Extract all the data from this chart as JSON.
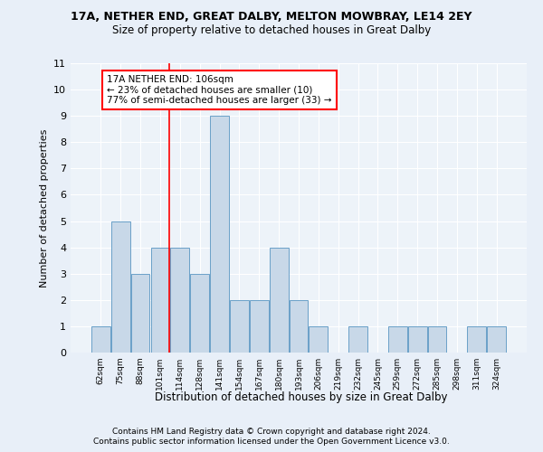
{
  "title1": "17A, NETHER END, GREAT DALBY, MELTON MOWBRAY, LE14 2EY",
  "title2": "Size of property relative to detached houses in Great Dalby",
  "xlabel": "Distribution of detached houses by size in Great Dalby",
  "ylabel": "Number of detached properties",
  "categories": [
    "62sqm",
    "75sqm",
    "88sqm",
    "101sqm",
    "114sqm",
    "128sqm",
    "141sqm",
    "154sqm",
    "167sqm",
    "180sqm",
    "193sqm",
    "206sqm",
    "219sqm",
    "232sqm",
    "245sqm",
    "259sqm",
    "272sqm",
    "285sqm",
    "298sqm",
    "311sqm",
    "324sqm"
  ],
  "values": [
    1,
    5,
    3,
    4,
    4,
    3,
    9,
    2,
    2,
    4,
    2,
    1,
    0,
    1,
    0,
    1,
    1,
    1,
    0,
    1,
    1
  ],
  "bar_color": "#c8d8e8",
  "bar_edge_color": "#6aa0c8",
  "red_line_x": 3.45,
  "annotation_title": "17A NETHER END: 106sqm",
  "annotation_line1": "← 23% of detached houses are smaller (10)",
  "annotation_line2": "77% of semi-detached houses are larger (33) →",
  "ylim": [
    0,
    11
  ],
  "yticks": [
    0,
    1,
    2,
    3,
    4,
    5,
    6,
    7,
    8,
    9,
    10,
    11
  ],
  "footer1": "Contains HM Land Registry data © Crown copyright and database right 2024.",
  "footer2": "Contains public sector information licensed under the Open Government Licence v3.0.",
  "background_color": "#e8eff8",
  "plot_bg_color": "#edf3f9"
}
